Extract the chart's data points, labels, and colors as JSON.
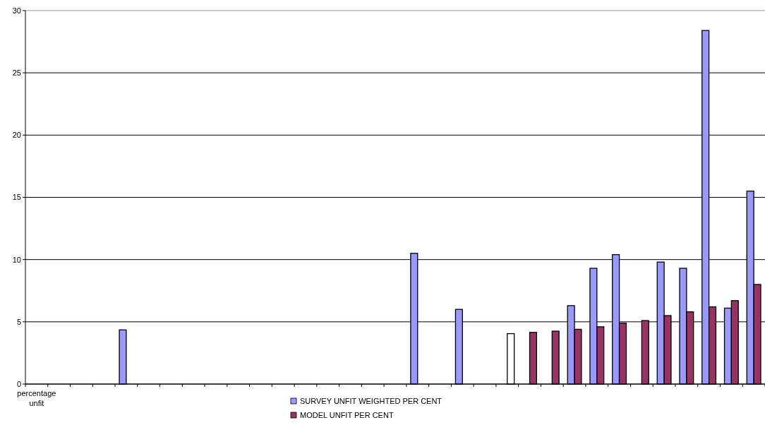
{
  "chart_data": {
    "type": "bar",
    "categories": [
      "percentage unfit",
      null,
      null,
      null,
      null,
      null,
      null,
      null,
      null,
      null,
      null,
      null,
      null,
      null,
      null,
      null,
      null,
      null,
      null,
      null,
      null,
      null,
      null,
      null,
      null,
      null,
      null,
      null,
      null,
      null,
      null,
      null,
      null
    ],
    "series": [
      {
        "name": "SURVEY UNFIT WEIGHTED PER CENT",
        "color": "#9999ff",
        "values": [
          null,
          null,
          null,
          null,
          4.35,
          null,
          null,
          null,
          null,
          null,
          null,
          null,
          null,
          null,
          null,
          null,
          null,
          10.5,
          null,
          6.0,
          null,
          null,
          null,
          null,
          6.3,
          9.3,
          10.4,
          null,
          9.8,
          9.3,
          28.4,
          6.1,
          15.5
        ]
      },
      {
        "name": "MODEL UNFIT PER CENT",
        "color": "#993366",
        "colors": [
          null,
          null,
          null,
          null,
          null,
          null,
          null,
          null,
          null,
          null,
          null,
          null,
          null,
          null,
          null,
          null,
          null,
          null,
          null,
          null,
          null,
          "#ffffff",
          "#993366",
          "#993366",
          "#993366",
          "#993366",
          "#993366",
          "#993366",
          "#993366",
          "#993366",
          "#993366",
          "#993366",
          "#993366"
        ],
        "values": [
          null,
          null,
          null,
          null,
          null,
          null,
          null,
          null,
          null,
          null,
          null,
          null,
          null,
          null,
          null,
          null,
          null,
          null,
          null,
          null,
          null,
          4.05,
          4.15,
          4.25,
          4.4,
          4.6,
          4.9,
          5.1,
          5.5,
          5.8,
          6.2,
          6.7,
          8.0
        ]
      }
    ],
    "ylim": [
      0,
      30
    ],
    "yticks": [
      0,
      5,
      10,
      15,
      20,
      25,
      30
    ],
    "grid": "y",
    "legend": "bottom"
  }
}
